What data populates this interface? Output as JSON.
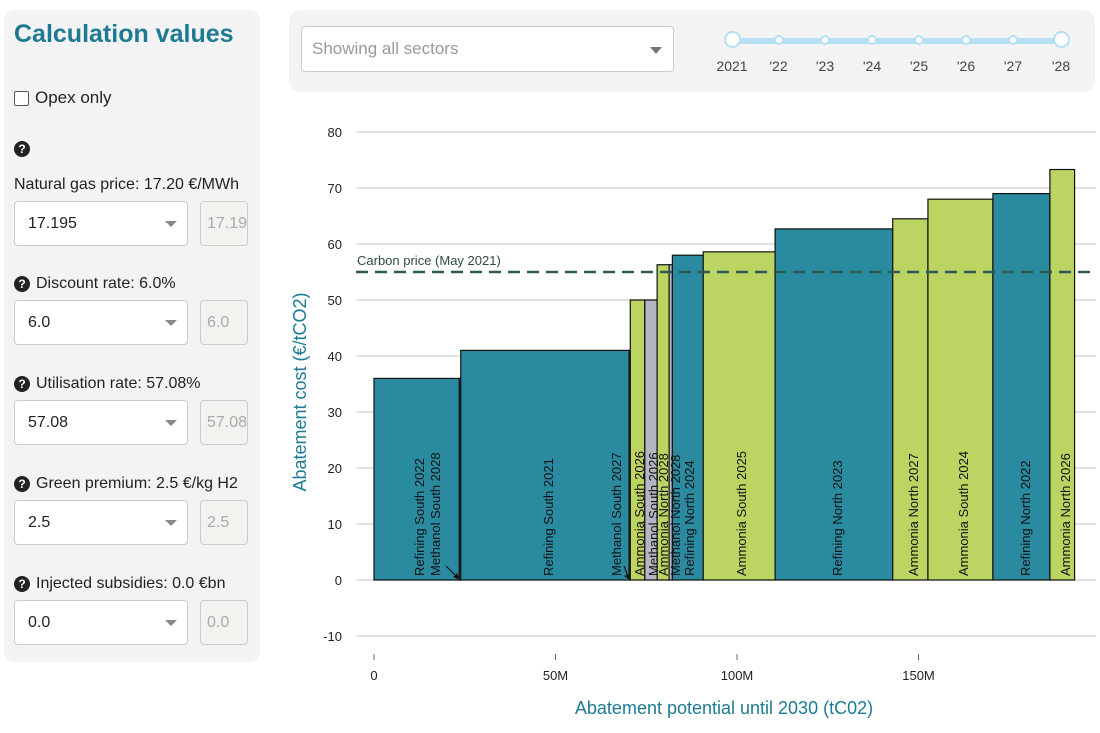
{
  "sidebar": {
    "title": "Calculation values",
    "opex_label": "Opex only",
    "params": [
      {
        "label": "Natural gas price: 17.20 €/MWh",
        "select_value": "17.195",
        "input_value": "17.195",
        "has_label_icon": false
      },
      {
        "label": "Discount rate: 6.0%",
        "select_value": "6.0",
        "input_value": "6.0",
        "has_label_icon": true
      },
      {
        "label": "Utilisation rate: 57.08%",
        "select_value": "57.08",
        "input_value": "57.08",
        "has_label_icon": true
      },
      {
        "label": "Green premium: 2.5 €/kg H2",
        "select_value": "2.5",
        "input_value": "2.5",
        "has_label_icon": true
      },
      {
        "label": "Injected subsidies: 0.0 €bn",
        "select_value": "0.0",
        "input_value": "0.0",
        "has_label_icon": true
      }
    ],
    "help_icon_glyph": "?"
  },
  "topbar": {
    "sector_placeholder": "Showing all sectors",
    "years": [
      "2021",
      "'22",
      "'23",
      "'24",
      "'25",
      "'26",
      "'27",
      "'28"
    ]
  },
  "colors": {
    "refining": "#2a8aa0",
    "ammonia": "#bcd462",
    "methanol": "#b5b6c3",
    "accent": "#1d7a93",
    "carbon_line": "#2f5a52"
  },
  "chart_data": {
    "type": "bar",
    "subtype": "marginal-abatement-cost-curve",
    "xlabel": "Abatement potential until 2030 (tC02)",
    "ylabel": "Abatement cost (€/tCO2)",
    "xlim": [
      0,
      198
    ],
    "ylim": [
      -12,
      82
    ],
    "x_ticks": [
      {
        "v": 0,
        "label": "0"
      },
      {
        "v": 50,
        "label": "50M"
      },
      {
        "v": 100,
        "label": "100M"
      },
      {
        "v": 150,
        "label": "150M"
      }
    ],
    "y_ticks": [
      -10,
      0,
      10,
      20,
      30,
      40,
      50,
      60,
      70,
      80
    ],
    "grid": true,
    "carbon_price": {
      "value": 55,
      "label": "Carbon price (May 2021)"
    },
    "bars": [
      {
        "label": "Refining South 2022",
        "x0": 0,
        "x1": 23.5,
        "value": 36,
        "sector": "refining"
      },
      {
        "label": "Methanol South 2028",
        "x0": 23.5,
        "x1": 23.9,
        "value": 36,
        "sector": "methanol"
      },
      {
        "label": "Refining South 2021",
        "x0": 23.9,
        "x1": 70.3,
        "value": 41,
        "sector": "refining"
      },
      {
        "label": "Methanol South 2027",
        "x0": 70.3,
        "x1": 70.6,
        "value": 41,
        "sector": "methanol"
      },
      {
        "label": "Ammonia South 2026",
        "x0": 70.6,
        "x1": 74.6,
        "value": 50,
        "sector": "ammonia"
      },
      {
        "label": "Methanol South 2026",
        "x0": 74.6,
        "x1": 78.0,
        "value": 50,
        "sector": "methanol"
      },
      {
        "label": "Ammonia North 2028",
        "x0": 78.0,
        "x1": 81.3,
        "value": 56.3,
        "sector": "ammonia"
      },
      {
        "label": "Methanol North 2028",
        "x0": 81.3,
        "x1": 82.2,
        "value": 56.3,
        "sector": "methanol"
      },
      {
        "label": "Refining North 2024",
        "x0": 82.2,
        "x1": 90.7,
        "value": 58,
        "sector": "refining"
      },
      {
        "label": "Ammonia South 2025",
        "x0": 90.7,
        "x1": 110.5,
        "value": 58.6,
        "sector": "ammonia"
      },
      {
        "label": "Refining North 2023",
        "x0": 110.5,
        "x1": 142.9,
        "value": 62.7,
        "sector": "refining"
      },
      {
        "label": "Ammonia North 2027",
        "x0": 142.9,
        "x1": 152.6,
        "value": 64.5,
        "sector": "ammonia"
      },
      {
        "label": "Ammonia South 2024",
        "x0": 152.6,
        "x1": 170.5,
        "value": 68,
        "sector": "ammonia"
      },
      {
        "label": "Refining North 2022",
        "x0": 170.5,
        "x1": 186.2,
        "value": 69,
        "sector": "refining"
      },
      {
        "label": "Ammonia North 2026",
        "x0": 186.2,
        "x1": 193,
        "value": 73.3,
        "sector": "ammonia"
      }
    ]
  }
}
